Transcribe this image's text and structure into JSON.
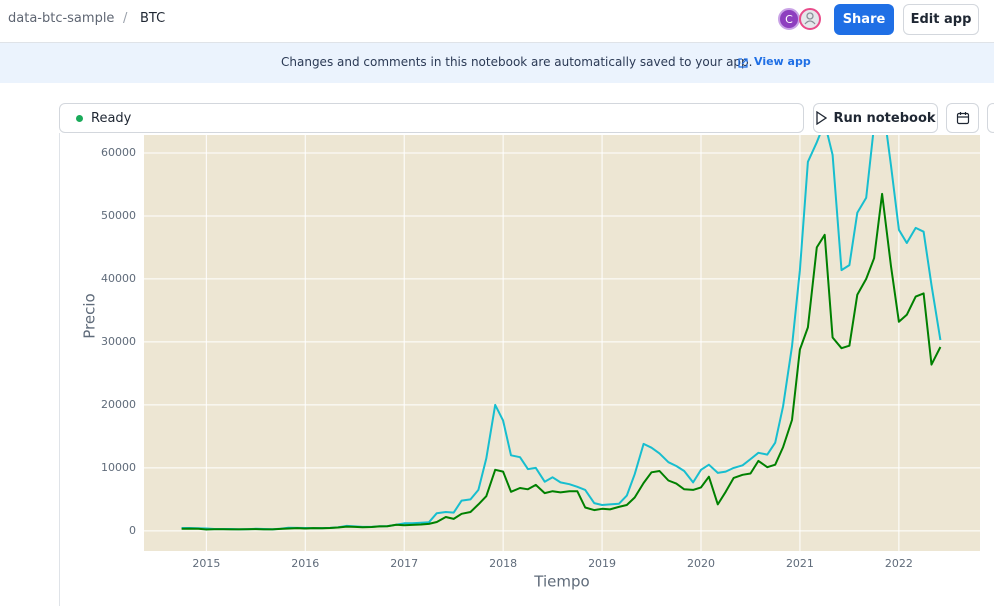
{
  "header": {
    "breadcrumb": [
      "data-btc-sample",
      "/",
      "BTC"
    ],
    "avatar": "C",
    "share": "Share",
    "edit_app": "Edit app"
  },
  "banner": {
    "message": "Changes and comments in this notebook are automatically saved to your app.",
    "link": "View app"
  },
  "toolbar": {
    "status": "Ready",
    "run": "Run notebook"
  },
  "chart_data": {
    "type": "line",
    "x_label": "Tiempo",
    "y_label": "Precio",
    "x": [
      2014.75,
      2014.83,
      2014.92,
      2015.0,
      2015.08,
      2015.17,
      2015.25,
      2015.33,
      2015.42,
      2015.5,
      2015.58,
      2015.67,
      2015.75,
      2015.83,
      2015.92,
      2016.0,
      2016.08,
      2016.17,
      2016.25,
      2016.33,
      2016.42,
      2016.5,
      2016.58,
      2016.67,
      2016.75,
      2016.83,
      2016.92,
      2017.0,
      2017.08,
      2017.17,
      2017.25,
      2017.33,
      2017.42,
      2017.5,
      2017.58,
      2017.67,
      2017.75,
      2017.83,
      2017.92,
      2018.0,
      2018.08,
      2018.17,
      2018.25,
      2018.33,
      2018.42,
      2018.5,
      2018.58,
      2018.67,
      2018.75,
      2018.83,
      2018.92,
      2019.0,
      2019.08,
      2019.17,
      2019.25,
      2019.33,
      2019.42,
      2019.5,
      2019.58,
      2019.67,
      2019.75,
      2019.83,
      2019.92,
      2020.0,
      2020.08,
      2020.17,
      2020.25,
      2020.33,
      2020.42,
      2020.5,
      2020.58,
      2020.67,
      2020.75,
      2020.83,
      2020.92,
      2021.0,
      2021.08,
      2021.17,
      2021.25,
      2021.33,
      2021.42,
      2021.5,
      2021.58,
      2021.67,
      2021.75,
      2021.83,
      2021.92,
      2022.0,
      2022.08,
      2022.17,
      2022.25,
      2022.33,
      2022.42
    ],
    "series": [
      {
        "color": "#17becf",
        "values": [
          450,
          450,
          420,
          380,
          300,
          300,
          300,
          250,
          270,
          320,
          300,
          250,
          330,
          500,
          470,
          460,
          440,
          440,
          470,
          550,
          780,
          700,
          620,
          620,
          720,
          750,
          980,
          1200,
          1200,
          1300,
          1350,
          2800,
          3000,
          2900,
          4800,
          5000,
          6500,
          11500,
          20000,
          17500,
          12000,
          11700,
          9800,
          10000,
          7800,
          8500,
          7700,
          7400,
          7000,
          6500,
          4400,
          4100,
          4200,
          4300,
          5600,
          9000,
          13800,
          13200,
          12300,
          10900,
          10300,
          9500,
          7700,
          9700,
          10500,
          9200,
          9400,
          10000,
          10400,
          11400,
          12400,
          12100,
          14000,
          19800,
          29300,
          41400,
          58600,
          61700,
          64800,
          59700,
          41400,
          42200,
          50500,
          52900,
          64400,
          68700,
          58000,
          47800,
          45700,
          48100,
          47500,
          39000,
          30300
        ]
      },
      {
        "color": "#008000",
        "values": [
          330,
          350,
          320,
          220,
          250,
          250,
          230,
          230,
          260,
          280,
          230,
          230,
          310,
          380,
          430,
          370,
          430,
          420,
          450,
          530,
          670,
          620,
          570,
          610,
          700,
          740,
          960,
          900,
          950,
          1000,
          1100,
          1400,
          2200,
          1900,
          2700,
          3000,
          4200,
          5500,
          9700,
          9400,
          6200,
          6800,
          6600,
          7300,
          6000,
          6300,
          6100,
          6300,
          6300,
          3700,
          3300,
          3500,
          3400,
          3800,
          4100,
          5300,
          7600,
          9300,
          9500,
          8000,
          7500,
          6600,
          6500,
          6900,
          8600,
          4200,
          6200,
          8400,
          8900,
          9100,
          11100,
          10100,
          10500,
          13300,
          17600,
          28800,
          32300,
          45000,
          47000,
          30700,
          29000,
          29400,
          37500,
          40000,
          43300,
          53500,
          42000,
          33200,
          34300,
          37200,
          37700,
          26400,
          29200
        ]
      }
    ],
    "xlim": [
      2014.37,
      2022.82
    ],
    "ylim": [
      -3200,
      70000
    ],
    "xticks": [
      2015,
      2016,
      2017,
      2018,
      2019,
      2020,
      2021,
      2022
    ],
    "yticks": [
      0,
      10000,
      20000,
      30000,
      40000,
      50000,
      60000
    ],
    "grid": true
  }
}
